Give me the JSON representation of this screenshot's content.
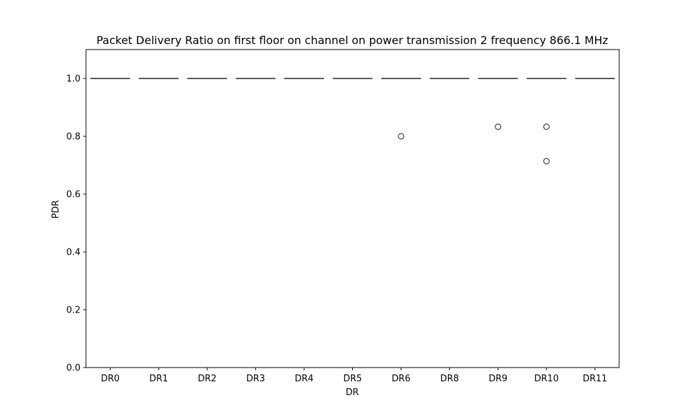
{
  "chart_data": {
    "type": "box",
    "title": "Packet Delivery Ratio on first floor on channel on power transmission 2 frequency 866.1 MHz",
    "xlabel": "DR",
    "ylabel": "PDR",
    "ylim": [
      0.0,
      1.1
    ],
    "yticks": [
      0.0,
      0.2,
      0.4,
      0.6,
      0.8,
      1.0
    ],
    "ytick_labels": [
      "0.0",
      "0.2",
      "0.4",
      "0.6",
      "0.8",
      "1.0"
    ],
    "grid": false,
    "categories": [
      "DR0",
      "DR1",
      "DR2",
      "DR3",
      "DR4",
      "DR5",
      "DR6",
      "DR8",
      "DR9",
      "DR10",
      "DR11"
    ],
    "boxes": [
      {
        "category": "DR0",
        "min": 1.0,
        "q1": 1.0,
        "median": 1.0,
        "q3": 1.0,
        "max": 1.0,
        "outliers": []
      },
      {
        "category": "DR1",
        "min": 1.0,
        "q1": 1.0,
        "median": 1.0,
        "q3": 1.0,
        "max": 1.0,
        "outliers": []
      },
      {
        "category": "DR2",
        "min": 1.0,
        "q1": 1.0,
        "median": 1.0,
        "q3": 1.0,
        "max": 1.0,
        "outliers": []
      },
      {
        "category": "DR3",
        "min": 1.0,
        "q1": 1.0,
        "median": 1.0,
        "q3": 1.0,
        "max": 1.0,
        "outliers": []
      },
      {
        "category": "DR4",
        "min": 1.0,
        "q1": 1.0,
        "median": 1.0,
        "q3": 1.0,
        "max": 1.0,
        "outliers": []
      },
      {
        "category": "DR5",
        "min": 1.0,
        "q1": 1.0,
        "median": 1.0,
        "q3": 1.0,
        "max": 1.0,
        "outliers": []
      },
      {
        "category": "DR6",
        "min": 1.0,
        "q1": 1.0,
        "median": 1.0,
        "q3": 1.0,
        "max": 1.0,
        "outliers": [
          0.8
        ]
      },
      {
        "category": "DR8",
        "min": 1.0,
        "q1": 1.0,
        "median": 1.0,
        "q3": 1.0,
        "max": 1.0,
        "outliers": []
      },
      {
        "category": "DR9",
        "min": 1.0,
        "q1": 1.0,
        "median": 1.0,
        "q3": 1.0,
        "max": 1.0,
        "outliers": [
          0.833
        ]
      },
      {
        "category": "DR10",
        "min": 1.0,
        "q1": 1.0,
        "median": 1.0,
        "q3": 1.0,
        "max": 1.0,
        "outliers": [
          0.833,
          0.714
        ]
      },
      {
        "category": "DR11",
        "min": 1.0,
        "q1": 1.0,
        "median": 1.0,
        "q3": 1.0,
        "max": 1.0,
        "outliers": []
      }
    ],
    "colors": {
      "box_line": "#3f3f3f",
      "axes": "#000000",
      "outlier_edge": "#3f3f3f",
      "outlier_fill": "#ffffff"
    }
  }
}
